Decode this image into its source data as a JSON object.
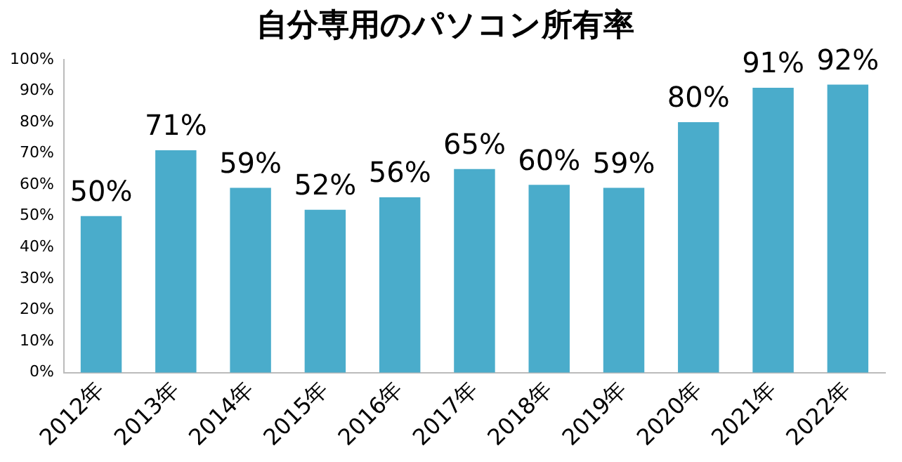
{
  "chart_data": {
    "type": "bar",
    "title": "自分専用のパソコン所有率",
    "categories": [
      "2012年",
      "2013年",
      "2014年",
      "2015年",
      "2016年",
      "2017年",
      "2018年",
      "2019年",
      "2020年",
      "2021年",
      "2022年"
    ],
    "values": [
      50,
      71,
      59,
      52,
      56,
      65,
      60,
      59,
      80,
      91,
      92
    ],
    "value_labels": [
      "50%",
      "71%",
      "59%",
      "52%",
      "56%",
      "65%",
      "60%",
      "59%",
      "80%",
      "91%",
      "92%"
    ],
    "color": "#4aaccb",
    "ylim": [
      0,
      100
    ],
    "yticks": [
      {
        "value": 0,
        "label": "0%"
      },
      {
        "value": 10,
        "label": "10%"
      },
      {
        "value": 20,
        "label": "20%"
      },
      {
        "value": 30,
        "label": "30%"
      },
      {
        "value": 40,
        "label": "40%"
      },
      {
        "value": 50,
        "label": "50%"
      },
      {
        "value": 60,
        "label": "60%"
      },
      {
        "value": 70,
        "label": "70%"
      },
      {
        "value": 80,
        "label": "80%"
      },
      {
        "value": 90,
        "label": "90%"
      },
      {
        "value": 100,
        "label": "100%"
      }
    ],
    "grid": false,
    "legend": false
  }
}
